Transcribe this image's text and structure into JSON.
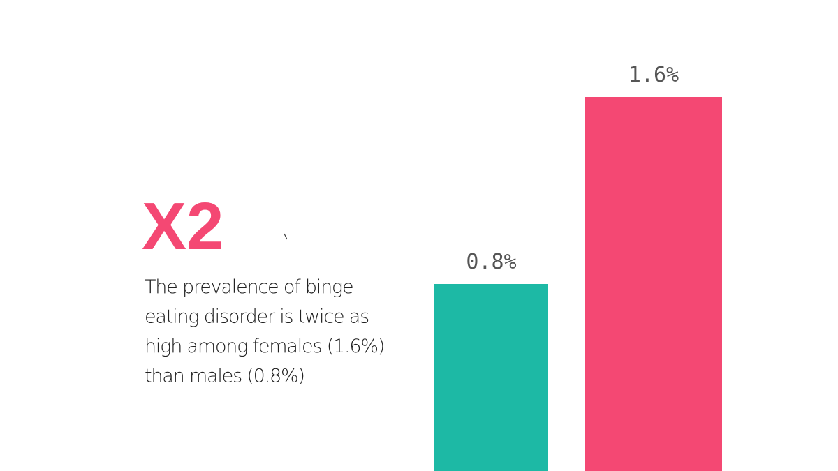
{
  "chart_data": {
    "type": "bar",
    "title": "X2",
    "subtitle": [
      "The prevalence of binge",
      "eating disorder is twice as",
      "high among females (1.6%)",
      "than males (0.8%)"
    ],
    "categories": [
      null,
      null
    ],
    "values": [
      0.8,
      1.6
    ],
    "value_labels": [
      "0.8%",
      "1.6%"
    ],
    "colors": [
      "#1db9a5",
      "#f44873"
    ]
  }
}
